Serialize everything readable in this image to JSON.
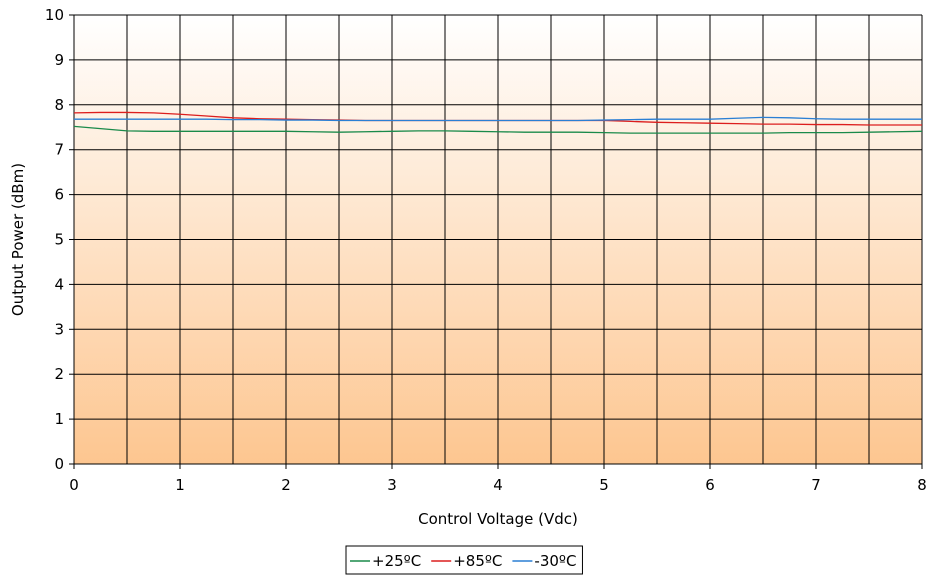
{
  "chart_data": {
    "type": "line",
    "title": "",
    "xlabel": "Control Voltage (Vdc)",
    "ylabel": "Output Power (dBm)",
    "xlim": [
      0,
      8
    ],
    "ylim": [
      0,
      10
    ],
    "x_ticks": [
      "0",
      "1",
      "2",
      "3",
      "4",
      "5",
      "6",
      "7",
      "8"
    ],
    "y_ticks": [
      "0",
      "1",
      "2",
      "3",
      "4",
      "5",
      "6",
      "7",
      "8",
      "9",
      "10"
    ],
    "grid": true,
    "x_grid_step": 0.5,
    "legend_position": "bottom-center",
    "background_gradient": [
      "#ffffff",
      "#fdc690"
    ],
    "series": [
      {
        "name": "+25ºC",
        "color": "#1a8a4a",
        "x": [
          0,
          0.25,
          0.5,
          0.75,
          1,
          1.25,
          1.5,
          1.75,
          2,
          2.25,
          2.5,
          2.75,
          3,
          3.25,
          3.5,
          3.75,
          4,
          4.25,
          4.5,
          4.75,
          5,
          5.25,
          5.5,
          5.75,
          6,
          6.25,
          6.5,
          6.75,
          7,
          7.25,
          7.5,
          7.75,
          8
        ],
        "values": [
          7.52,
          7.47,
          7.42,
          7.41,
          7.41,
          7.41,
          7.41,
          7.41,
          7.41,
          7.4,
          7.39,
          7.4,
          7.41,
          7.42,
          7.42,
          7.41,
          7.4,
          7.39,
          7.39,
          7.39,
          7.38,
          7.37,
          7.37,
          7.37,
          7.37,
          7.37,
          7.37,
          7.38,
          7.38,
          7.38,
          7.39,
          7.4,
          7.41
        ]
      },
      {
        "name": "+85ºC",
        "color": "#dc1e1e",
        "x": [
          0,
          0.25,
          0.5,
          0.75,
          1,
          1.25,
          1.5,
          1.75,
          2,
          2.25,
          2.5,
          2.75,
          3,
          3.25,
          3.5,
          3.75,
          4,
          4.25,
          4.5,
          4.75,
          5,
          5.25,
          5.5,
          5.75,
          6,
          6.25,
          6.5,
          6.75,
          7,
          7.25,
          7.5,
          7.75,
          8
        ],
        "values": [
          7.82,
          7.83,
          7.83,
          7.82,
          7.79,
          7.75,
          7.71,
          7.69,
          7.68,
          7.67,
          7.66,
          7.65,
          7.65,
          7.65,
          7.65,
          7.65,
          7.65,
          7.65,
          7.65,
          7.65,
          7.65,
          7.63,
          7.61,
          7.6,
          7.59,
          7.58,
          7.57,
          7.57,
          7.56,
          7.56,
          7.55,
          7.55,
          7.55
        ]
      },
      {
        "name": "-30ºC",
        "color": "#2a7fd4",
        "x": [
          0,
          0.25,
          0.5,
          0.75,
          1,
          1.25,
          1.5,
          1.75,
          2,
          2.25,
          2.5,
          2.75,
          3,
          3.25,
          3.5,
          3.75,
          4,
          4.25,
          4.5,
          4.75,
          5,
          5.25,
          5.5,
          5.75,
          6,
          6.25,
          6.5,
          6.75,
          7,
          7.25,
          7.5,
          7.75,
          8
        ],
        "values": [
          7.68,
          7.68,
          7.68,
          7.68,
          7.68,
          7.68,
          7.67,
          7.67,
          7.66,
          7.66,
          7.65,
          7.65,
          7.65,
          7.65,
          7.65,
          7.65,
          7.65,
          7.65,
          7.65,
          7.65,
          7.66,
          7.67,
          7.68,
          7.68,
          7.68,
          7.7,
          7.72,
          7.71,
          7.69,
          7.68,
          7.68,
          7.68,
          7.68
        ]
      }
    ]
  }
}
